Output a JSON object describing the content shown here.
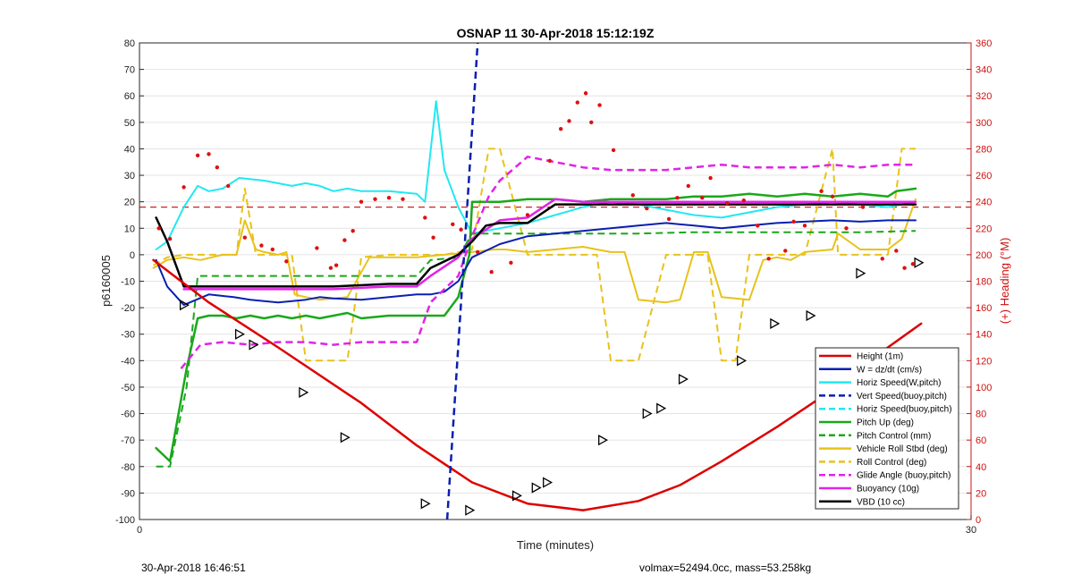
{
  "chart_data": {
    "type": "line",
    "title": "OSNAP 11 30-Apr-2018 15:12:19Z",
    "xlabel": "Time (minutes)",
    "ylabel": "p6160005",
    "y2label": "(+) Heading (°M)",
    "xlim": [
      0,
      30
    ],
    "ylim": [
      -100,
      80
    ],
    "y2lim": [
      0,
      360
    ],
    "x_ticks": [
      "0",
      "30"
    ],
    "y_ticks": [
      "80",
      "70",
      "60",
      "50",
      "40",
      "30",
      "20",
      "10",
      "0",
      "-10",
      "-20",
      "-30",
      "-40",
      "-50",
      "-60",
      "-70",
      "-80",
      "-90",
      "-100"
    ],
    "y2_ticks": [
      "360",
      "340",
      "320",
      "300",
      "280",
      "260",
      "240",
      "220",
      "200",
      "180",
      "160",
      "140",
      "120",
      "100",
      "80",
      "60",
      "40",
      "20",
      "0"
    ],
    "grid": "horizontal",
    "legend_position": "bottom-right",
    "reference_line": {
      "y2": 236,
      "color": "#cc2222",
      "style": "dashed"
    },
    "series": [
      {
        "name": "Height (1m)",
        "color": "#dd0000",
        "style": "solid",
        "width": 2.5,
        "x": [
          0.5,
          2.5,
          5,
          8,
          10,
          12,
          14,
          16,
          18,
          19.5,
          21,
          23,
          25,
          27,
          28.2
        ],
        "values": [
          -2,
          -18,
          -35,
          -56,
          -72,
          -86,
          -94,
          -96.5,
          -93,
          -87,
          -78,
          -65,
          -51,
          -35,
          -26
        ]
      },
      {
        "name": "W = dz/dt (cm/s)",
        "color": "#0a1fb0",
        "style": "solid",
        "width": 2,
        "x": [
          0.6,
          1,
          1.6,
          2.5,
          3.4,
          4,
          5,
          6,
          6.5,
          7,
          8,
          9,
          10,
          10.5,
          11,
          11.5,
          12,
          13,
          14,
          15,
          16,
          17,
          18,
          19,
          20,
          21,
          22,
          23,
          24,
          25,
          26,
          27,
          28
        ],
        "values": [
          -2,
          -12,
          -19,
          -15,
          -16,
          -17,
          -18,
          -17,
          -16,
          -16.5,
          -17,
          -16,
          -15,
          -15,
          -14,
          -10,
          -1,
          4,
          7,
          8,
          9,
          10,
          11,
          12,
          11,
          10,
          11,
          12,
          12.5,
          13,
          12.5,
          13,
          13
        ]
      },
      {
        "name": "Horiz Speed(W,pitch)",
        "color": "#22e8f0",
        "style": "solid",
        "width": 2,
        "x": [
          0.6,
          1,
          1.6,
          2.1,
          2.5,
          3,
          3.6,
          4.5,
          5.5,
          6,
          6.5,
          7,
          7.5,
          8,
          9,
          10,
          10.3,
          10.7,
          11,
          11.5,
          12,
          12.5,
          13,
          14,
          15,
          16,
          17,
          18,
          19,
          20,
          21,
          22,
          23,
          24,
          25,
          26,
          27,
          28
        ],
        "values": [
          2,
          5,
          18,
          26,
          24,
          25,
          29,
          28,
          26,
          27,
          26,
          24,
          25,
          24,
          24,
          23,
          20,
          58,
          32,
          18,
          8,
          9,
          10,
          12,
          15,
          18,
          20,
          19,
          17,
          15,
          14,
          16,
          18,
          19,
          20,
          19,
          18,
          20
        ]
      },
      {
        "name": "Vert Speed(buoy,pitch)",
        "color": "#0a1fb0",
        "style": "dashed",
        "width": 2.5,
        "x": [
          11.1,
          12.2
        ],
        "values": [
          -100,
          80
        ]
      },
      {
        "name": "Horiz Speed(buoy,pitch)",
        "color": "#22e8f0",
        "style": "dashed",
        "width": 2,
        "x": [],
        "values": []
      },
      {
        "name": "Pitch Up (deg)",
        "color": "#1aa81a",
        "style": "solid",
        "width": 2.5,
        "x": [
          0.6,
          1.1,
          1.7,
          2.1,
          2.5,
          3,
          3.5,
          4,
          4.5,
          5,
          5.5,
          6,
          6.5,
          7,
          7.5,
          8,
          9,
          10,
          10.5,
          11,
          11.5,
          11.9,
          12,
          13,
          14,
          15,
          16,
          17,
          18,
          19,
          20,
          21,
          22,
          23,
          24,
          25,
          26,
          27,
          27.3,
          28
        ],
        "values": [
          -73,
          -78,
          -43,
          -24,
          -23,
          -23,
          -24,
          -23,
          -24,
          -23,
          -24,
          -23,
          -24,
          -23,
          -22,
          -24,
          -23,
          -23,
          -23,
          -23,
          -16,
          0,
          20,
          20,
          21,
          21,
          20,
          21,
          21,
          21,
          22,
          22,
          23,
          22,
          23,
          22,
          23,
          22,
          24,
          25
        ]
      },
      {
        "name": "Pitch Control (mm)",
        "color": "#1aa81a",
        "style": "dashed",
        "width": 2,
        "x": [
          0.6,
          1.1,
          1.7,
          2.1,
          3,
          5,
          7,
          9,
          10,
          10.5,
          11.5,
          12,
          13,
          14,
          15,
          16,
          18,
          20,
          22,
          24,
          26,
          28
        ],
        "values": [
          -80,
          -80,
          -50,
          -8,
          -8,
          -8,
          -8,
          -8,
          -8,
          -2,
          -1,
          8,
          8,
          8,
          8,
          8,
          8,
          8.5,
          8.5,
          8.5,
          8.5,
          9
        ]
      },
      {
        "name": "Vehicle Roll Stbd (deg)",
        "color": "#e8c21a",
        "style": "solid",
        "width": 2,
        "x": [
          0.5,
          1,
          1.6,
          2.2,
          3,
          3.5,
          3.8,
          4.2,
          4.5,
          5,
          5.3,
          5.6,
          6,
          6.5,
          7.5,
          8.3,
          9,
          10,
          11,
          12,
          12.8,
          13.2,
          14,
          15,
          16,
          16.5,
          17,
          17.5,
          18,
          19,
          19.5,
          20,
          20.5,
          21,
          22,
          22.5,
          23,
          23.5,
          24,
          25,
          25.2,
          26,
          27,
          27.5,
          28
        ],
        "values": [
          -5,
          -2,
          -1,
          -2,
          0,
          0,
          13,
          2,
          1,
          0,
          1,
          -15,
          -16,
          -17,
          -16,
          -1,
          -1,
          -1,
          0,
          1,
          2,
          2,
          1,
          2,
          3,
          2,
          1,
          1,
          -17,
          -18,
          -17,
          1,
          1,
          -16,
          -17,
          -2,
          -1,
          -2,
          1,
          2,
          8,
          2,
          2,
          6,
          21
        ]
      },
      {
        "name": "Roll Control (deg)",
        "color": "#e8c21a",
        "style": "dashed",
        "width": 2,
        "x": [
          0.5,
          1,
          1.6,
          2.2,
          3,
          3.5,
          3.8,
          4.2,
          4.8,
          5.5,
          6,
          6.5,
          7.5,
          8,
          9,
          10,
          11,
          12,
          12.6,
          13,
          13.5,
          14,
          15,
          16,
          16.5,
          17,
          17.5,
          18,
          19,
          19.5,
          20,
          20.5,
          21,
          21.5,
          22,
          23,
          23.5,
          24,
          25,
          25.2,
          25.5,
          26,
          27,
          27.5,
          28
        ],
        "values": [
          -4,
          -1,
          0,
          0,
          0,
          0,
          25,
          0,
          0,
          0,
          -40,
          -40,
          -40,
          -1,
          0,
          0,
          0,
          2,
          40,
          40,
          20,
          0,
          0,
          0,
          0,
          -40,
          -40,
          -40,
          0,
          0,
          0,
          0,
          -40,
          -40,
          0,
          0,
          0,
          0,
          40,
          0,
          0,
          0,
          0,
          40,
          40
        ]
      },
      {
        "name": "Glide Angle (buoy,pitch)",
        "color": "#e024e8",
        "style": "dashed",
        "width": 2.5,
        "x": [
          1.5,
          2.2,
          3,
          4,
          5,
          6,
          7,
          8,
          9,
          10,
          10.5,
          11.5,
          12,
          12.6,
          13,
          14,
          15,
          16,
          17,
          18,
          19,
          20,
          21,
          22,
          23,
          24,
          25,
          26,
          27,
          28
        ],
        "values": [
          -43,
          -34,
          -33,
          -34,
          -33,
          -33,
          -34,
          -33,
          -33,
          -33,
          -18,
          -8,
          7,
          22,
          28,
          37,
          35,
          33,
          32,
          32,
          32,
          33,
          34,
          33,
          33,
          33,
          34,
          33,
          34,
          34
        ]
      },
      {
        "name": "Buoyancy (10g)",
        "color": "#e024e8",
        "style": "solid",
        "width": 2.5,
        "x": [
          1.6,
          3,
          5,
          7,
          9,
          10,
          10.5,
          11.5,
          12,
          13,
          14,
          15,
          16,
          17,
          18,
          19,
          20,
          22,
          24,
          26,
          28
        ],
        "values": [
          -13,
          -13,
          -13,
          -13,
          -12,
          -12,
          -8,
          -1,
          6,
          13,
          14,
          21,
          20,
          20,
          20,
          20,
          20,
          20,
          20,
          20,
          20
        ]
      },
      {
        "name": "VBD (10 cc)",
        "color": "#000000",
        "style": "solid",
        "width": 2.5,
        "x": [
          0.6,
          1,
          1.6,
          3,
          5,
          7,
          9,
          10,
          10.5,
          11.5,
          12,
          12.5,
          13,
          14,
          15,
          16,
          18,
          20,
          22,
          24,
          26,
          28
        ],
        "values": [
          14,
          5,
          -12,
          -12,
          -12,
          -12,
          -11,
          -11,
          -5,
          0,
          5,
          11,
          12,
          12,
          19,
          19,
          19,
          19,
          19,
          19,
          19,
          19
        ]
      }
    ],
    "triangle_markers": {
      "x": [
        1.6,
        3.6,
        4.1,
        5.9,
        7.4,
        10.3,
        11.9,
        13.6,
        14.3,
        14.7,
        16.7,
        18.3,
        18.8,
        19.6,
        21.7,
        22.9,
        24.2,
        26.0,
        28.1
      ],
      "values": [
        -19,
        -30,
        -34,
        -52,
        -69,
        -94,
        -96.5,
        -91,
        -88,
        -86,
        -70,
        -60,
        -58,
        -47,
        -40,
        -26,
        -23,
        -7,
        -3
      ]
    },
    "heading_points": {
      "x": [
        0.7,
        1.1,
        1.6,
        2.1,
        2.5,
        2.8,
        3.2,
        3.8,
        4.4,
        4.8,
        5.3,
        6.4,
        6.9,
        7.1,
        7.4,
        7.7,
        8.0,
        8.5,
        9.0,
        9.5,
        10.3,
        10.6,
        11.3,
        11.6,
        12.2,
        12.7,
        13.4,
        14.0,
        14.8,
        15.2,
        15.5,
        15.8,
        16.1,
        16.3,
        16.6,
        17.1,
        17.8,
        18.3,
        19.1,
        19.4,
        19.8,
        20.3,
        20.6,
        21.2,
        21.8,
        22.3,
        22.7,
        23.3,
        23.6,
        24.0,
        24.6,
        25.0,
        25.5,
        26.1,
        26.8,
        27.3,
        27.6,
        27.9
      ],
      "values": [
        220,
        212,
        251,
        275,
        276,
        266,
        252,
        213,
        207,
        204,
        195,
        205,
        190,
        192,
        211,
        218,
        240,
        242,
        243,
        242,
        228,
        213,
        223,
        219,
        202,
        187,
        194,
        230,
        271,
        295,
        301,
        315,
        322,
        300,
        313,
        279,
        245,
        235,
        227,
        243,
        252,
        243,
        258,
        239,
        241,
        222,
        197,
        203,
        225,
        222,
        248,
        244,
        220,
        236,
        197,
        203,
        190,
        193
      ]
    }
  },
  "footer": {
    "date": "30-Apr-2018 16:46:51",
    "info": "volmax=52494.0cc, mass=53.258kg"
  }
}
